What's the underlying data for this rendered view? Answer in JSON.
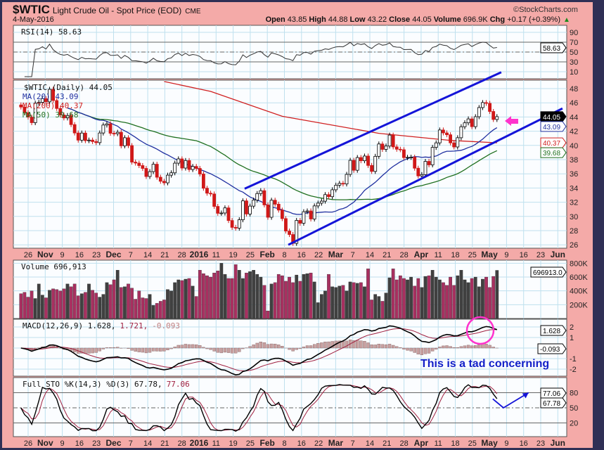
{
  "header": {
    "symbol": "$WTIC",
    "name": "Light Crude Oil - Spot Price (EOD)",
    "exchange": "CME",
    "date": "4-May-2016",
    "open_label": "Open",
    "open": "43.85",
    "high_label": "High",
    "high": "44.88",
    "low_label": "Low",
    "low": "43.22",
    "close_label": "Close",
    "close": "44.05",
    "volume_label": "Volume",
    "volume": "696.9K",
    "chg_label": "Chg",
    "chg": "+0.17 (+0.39%)",
    "up_arrow": "▲",
    "brand": "©StockCharts.com"
  },
  "legends": {
    "rsi": "RSI(14) 58.63",
    "price": "$WTIC (Daily) 44.05",
    "ma20": "MA(20) 43.09",
    "ma200": "MA(200) 40.37",
    "ma50": "MA(50) 39.68",
    "volume": "Volume 696,913",
    "macd_a": "MACD(12,26,9) 1.628,",
    "macd_b": "1.721,",
    "macd_c": "-0.093",
    "sto_a": "Full STO %K(14,3) %D(3) 67.78,",
    "sto_b": "77.06"
  },
  "tags": {
    "price": "44.05",
    "ma20": "43.09",
    "ma200": "40.37",
    "ma50": "39.68",
    "rsi": "58.63",
    "volume": "696913.0",
    "macd": "1.628",
    "hist": "-0.093",
    "sto_d": "77.06",
    "sto_k": "67.78"
  },
  "annotation": {
    "text": "This is a tad concerning"
  },
  "colors": {
    "up": "#000000",
    "down": "#d01818",
    "vol_up": "#404040",
    "vol_down": "#a83060",
    "ma20": "#2030a0",
    "ma50": "#207020",
    "ma200": "#d02020",
    "channel": "#1414d8",
    "highlight": "#ff33cc"
  },
  "chart_data": {
    "type": "candlestick",
    "title": "$WTIC Light Crude Oil - Spot Price (EOD)",
    "date_labels": [
      "26",
      "Nov",
      "9",
      "16",
      "23",
      "Dec",
      "7",
      "14",
      "21",
      "28",
      "2016",
      "11",
      "19",
      "25",
      "Feb",
      "8",
      "16",
      "22",
      "Mar",
      "7",
      "14",
      "21",
      "28",
      "Apr",
      "11",
      "18",
      "25",
      "May",
      "9",
      "16",
      "23",
      "Jun"
    ],
    "bold_labels": [
      "Nov",
      "Dec",
      "2016",
      "Feb",
      "Mar",
      "Apr",
      "May",
      "Jun"
    ],
    "price_ticks": [
      48,
      46,
      44,
      42,
      40,
      38,
      36,
      34,
      32,
      30,
      28,
      26
    ],
    "price_range": [
      25.2,
      49.2
    ],
    "rsi_ticks": [
      90,
      70,
      50,
      30,
      10
    ],
    "volume_ticks": [
      "800K",
      "600K",
      "400K",
      "200K"
    ],
    "macd_ticks": [
      "2",
      "1",
      "-1",
      "-2"
    ],
    "sto_ticks": [
      "80",
      "50",
      "20"
    ],
    "closes": [
      45.4,
      44.6,
      43.98,
      43.2,
      45.94,
      46.06,
      46.59,
      46.14,
      47.9,
      46.32,
      45.2,
      44.29,
      43.87,
      44.21,
      42.93,
      41.75,
      40.74,
      41.74,
      40.67,
      40.75,
      40.54,
      40.39,
      41.75,
      42.87,
      43.04,
      41.71,
      41.65,
      41.85,
      39.94,
      41.08,
      39.97,
      37.65,
      37.51,
      37.16,
      36.76,
      35.62,
      36.31,
      37.35,
      35.52,
      34.95,
      34.73,
      35.81,
      36.14,
      37.5,
      38.1,
      36.81,
      37.87,
      36.6,
      37.04,
      36.76,
      35.97,
      33.97,
      33.27,
      33.16,
      31.41,
      30.44,
      30.48,
      31.2,
      29.42,
      28.46,
      28.35,
      29.53,
      32.19,
      30.34,
      31.45,
      32.3,
      33.22,
      33.62,
      31.62,
      29.88,
      32.28,
      31.72,
      30.89,
      29.69,
      27.94,
      27.45,
      26.21,
      29.44,
      29.04,
      30.66,
      30.77,
      29.64,
      31.48,
      31.87,
      32.15,
      33.07,
      32.78,
      33.75,
      34.4,
      34.66,
      34.57,
      35.92,
      37.9,
      36.5,
      38.29,
      37.84,
      38.5,
      37.18,
      36.34,
      38.46,
      40.2,
      39.44,
      39.91,
      41.45,
      39.79,
      39.46,
      39.39,
      38.28,
      38.32,
      38.34,
      36.79,
      35.7,
      35.89,
      37.75,
      37.26,
      39.72,
      40.36,
      42.17,
      41.76,
      41.5,
      40.36,
      39.78,
      41.08,
      42.63,
      43.18,
      43.73,
      42.64,
      44.04,
      45.33,
      46.03,
      45.92,
      44.78,
      43.65,
      44.05
    ],
    "volumes_k": [
      360,
      380,
      310,
      400,
      290,
      500,
      340,
      300,
      410,
      430,
      420,
      400,
      430,
      500,
      460,
      500,
      330,
      360,
      380,
      500,
      410,
      370,
      310,
      350,
      520,
      490,
      560,
      700,
      450,
      460,
      500,
      440,
      280,
      400,
      300,
      290,
      350,
      190,
      220,
      250,
      270,
      420,
      400,
      520,
      560,
      550,
      570,
      580,
      470,
      320,
      700,
      650,
      620,
      600,
      660,
      690,
      800,
      640,
      580,
      580,
      780,
      700,
      580,
      660,
      680,
      700,
      640,
      600,
      480,
      110,
      500,
      520,
      640,
      620,
      540,
      600,
      520,
      630,
      540,
      640,
      650,
      660,
      530,
      230,
      350,
      400,
      640,
      460,
      450,
      470,
      480,
      400,
      530,
      520,
      510,
      520,
      460,
      720,
      270,
      350,
      320,
      250,
      370,
      590,
      720,
      560,
      620,
      580,
      560,
      600,
      470,
      580,
      450,
      610,
      620,
      700,
      600,
      560,
      520,
      480,
      600,
      480,
      620,
      700,
      560,
      520,
      580,
      600,
      460,
      570,
      600,
      450,
      610,
      697
    ],
    "ma200_points": [
      [
        40,
        49.0
      ],
      [
        53,
        47.6
      ],
      [
        73,
        44.1
      ],
      [
        100,
        41.7
      ],
      [
        120,
        40.7
      ],
      [
        133,
        40.37
      ]
    ],
    "channel_upper": [
      [
        62.5,
        33.9
      ],
      [
        134.2,
        50.3
      ]
    ],
    "channel_lower": [
      [
        74.7,
        26.0
      ],
      [
        151.3,
        45.2
      ]
    ],
    "sto_projection": [
      [
        133,
        67.78
      ],
      [
        136,
        50
      ],
      [
        143,
        80
      ]
    ],
    "rsi_levels": [
      70,
      50,
      30
    ],
    "sto_levels": [
      80,
      50,
      20
    ]
  }
}
